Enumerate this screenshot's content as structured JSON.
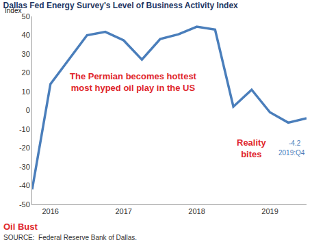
{
  "chart_data": {
    "type": "line",
    "title": "Dallas Fed Energy Survey's Level of Business Activity Index",
    "ylabel": "Index",
    "source": "SOURCE:  Federal Reserve Bank of Dallas.",
    "categories": [
      null,
      "2016",
      null,
      null,
      null,
      "2017",
      null,
      null,
      null,
      "2018",
      null,
      null,
      null,
      "2019",
      null,
      null
    ],
    "values": [
      -42,
      14,
      27,
      40,
      41.8,
      37.3,
      27,
      38,
      40.5,
      44.5,
      43,
      2,
      11,
      -1,
      -6.5,
      -4.2
    ],
    "color": "#4a7ebb",
    "ylim": [
      -50,
      50
    ],
    "yticks": [
      -50,
      -40,
      -30,
      -20,
      -10,
      0,
      10,
      20,
      30,
      40,
      50
    ],
    "grid": false,
    "annotations": [
      {
        "text": [
          "The Permian becomes hottest",
          "most hyped oil play in the US"
        ]
      },
      {
        "text": [
          "Reality",
          "bites"
        ]
      },
      {
        "text": [
          "Oil Bust"
        ]
      },
      {
        "text": [
          "-4.2"
        ]
      },
      {
        "text": [
          "2019:Q4"
        ]
      }
    ]
  }
}
